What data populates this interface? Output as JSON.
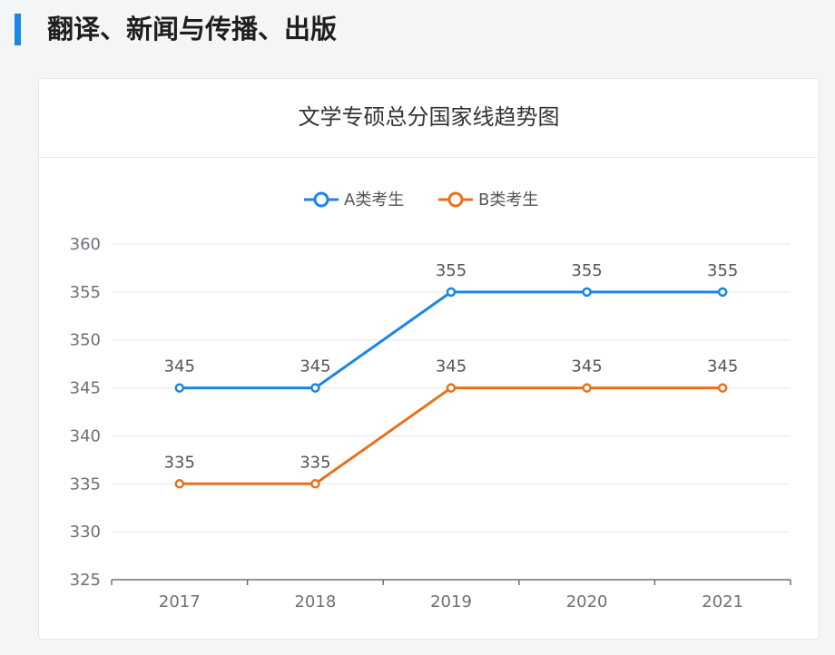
{
  "section": {
    "title": "翻译、新闻与传播、出版"
  },
  "colors": {
    "accent": "#1a86e6",
    "series_a": "#1a86e6",
    "series_b": "#e8711a"
  },
  "chart_data": {
    "type": "line",
    "title": "文学专硕总分国家线趋势图",
    "categories": [
      "2017",
      "2018",
      "2019",
      "2020",
      "2021"
    ],
    "series": [
      {
        "name": "A类考生",
        "values": [
          345,
          345,
          355,
          355,
          355
        ]
      },
      {
        "name": "B类考生",
        "values": [
          335,
          335,
          345,
          345,
          345
        ]
      }
    ],
    "yticks": [
      325,
      330,
      335,
      340,
      345,
      350,
      355,
      360
    ],
    "ylim": [
      325,
      360
    ],
    "xlabel": "",
    "ylabel": "",
    "legend": "top-center",
    "grid": true
  }
}
